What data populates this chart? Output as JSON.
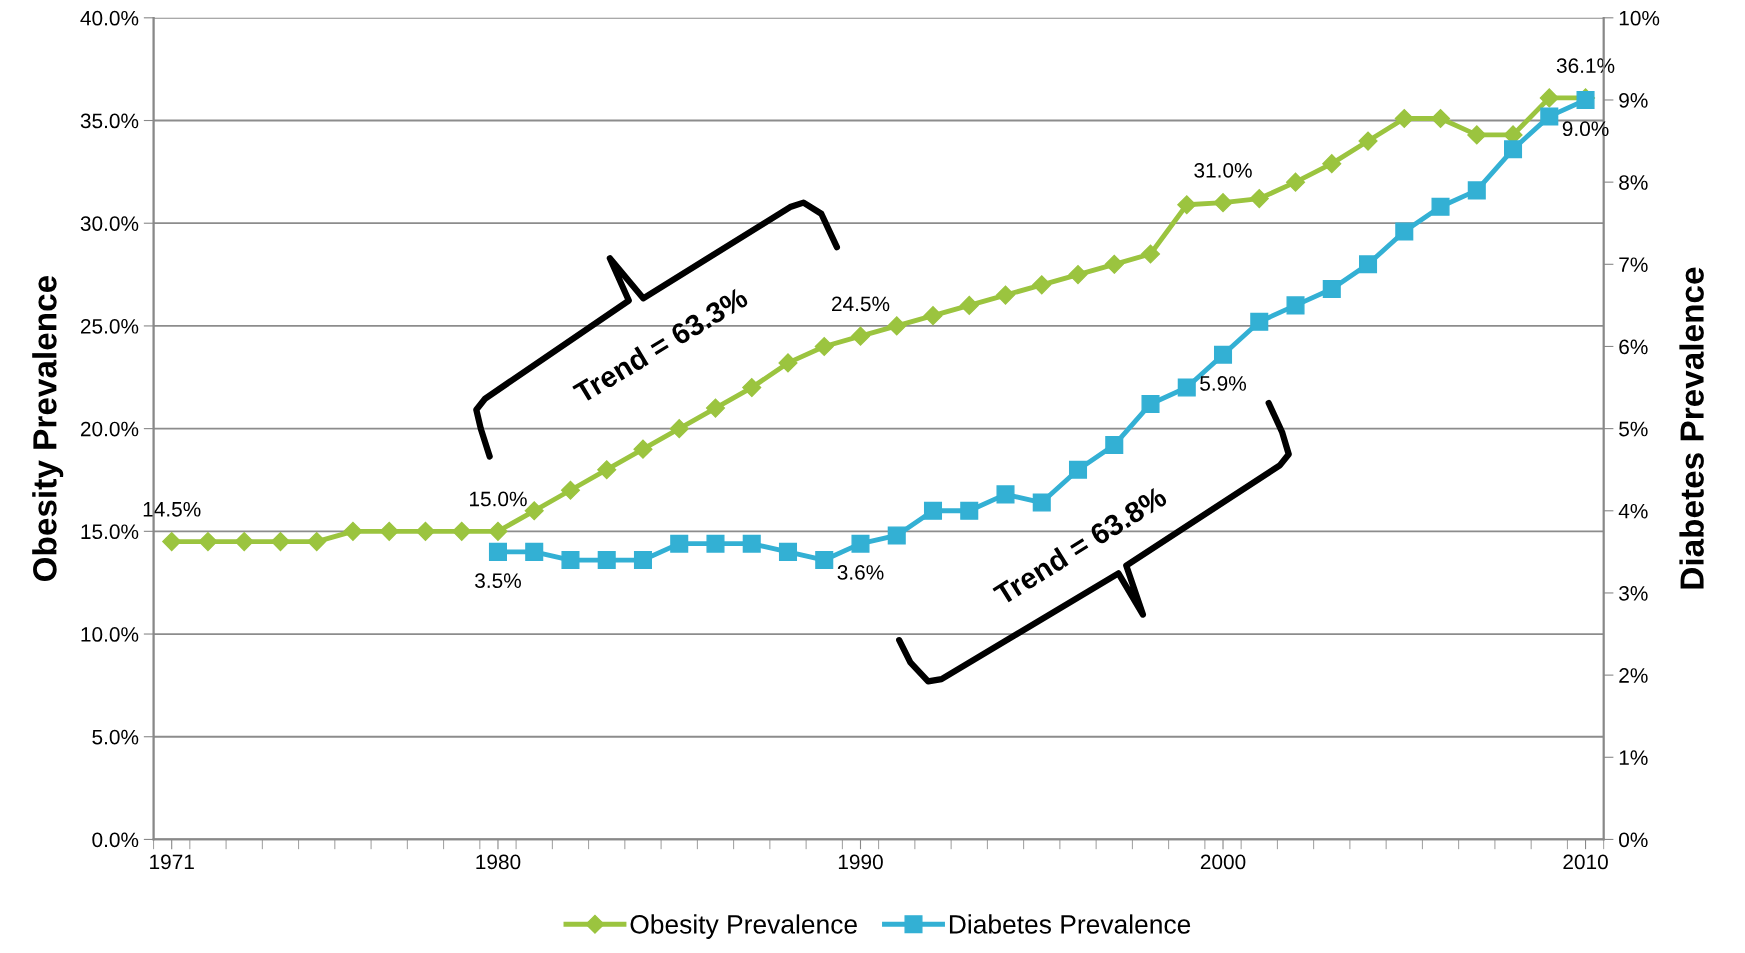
{
  "chart_data": {
    "type": "line",
    "x": [
      1971,
      1972,
      1973,
      1974,
      1975,
      1976,
      1977,
      1978,
      1979,
      1980,
      1981,
      1982,
      1983,
      1984,
      1985,
      1986,
      1987,
      1988,
      1989,
      1990,
      1991,
      1992,
      1993,
      1994,
      1995,
      1996,
      1997,
      1998,
      1999,
      2000,
      2001,
      2002,
      2003,
      2004,
      2005,
      2006,
      2007,
      2008,
      2009,
      2010
    ],
    "series": [
      {
        "name": "Obesity Prevalence",
        "color": "#9bc43f",
        "marker": "diamond",
        "values": [
          14.5,
          14.5,
          14.5,
          14.5,
          14.5,
          15.0,
          15.0,
          15.0,
          15.0,
          15.0,
          16.0,
          17.0,
          18.0,
          19.0,
          20.0,
          21.0,
          22.0,
          23.2,
          24.0,
          24.5,
          25.0,
          25.5,
          26.0,
          26.5,
          27.0,
          27.5,
          28.0,
          28.5,
          30.9,
          31.0,
          31.2,
          32.0,
          32.9,
          34.0,
          35.1,
          35.1,
          34.3,
          34.3,
          36.1,
          36.1
        ],
        "value_labels": [
          "14.5%",
          null,
          null,
          null,
          null,
          null,
          null,
          null,
          null,
          "15.0%",
          null,
          null,
          null,
          null,
          null,
          null,
          null,
          null,
          null,
          "24.5%",
          null,
          null,
          null,
          null,
          null,
          null,
          null,
          null,
          null,
          "31.0%",
          null,
          null,
          null,
          null,
          null,
          null,
          null,
          null,
          null,
          "36.1%"
        ]
      },
      {
        "name": "Diabetes Prevalence",
        "color": "#33b0d4",
        "marker": "square",
        "axis": "y2",
        "values": [
          null,
          null,
          null,
          null,
          null,
          null,
          null,
          null,
          null,
          3.5,
          3.5,
          3.4,
          3.4,
          3.4,
          3.6,
          3.6,
          3.6,
          3.5,
          3.4,
          3.6,
          3.7,
          4.0,
          4.0,
          4.2,
          4.1,
          4.5,
          4.8,
          5.3,
          5.5,
          5.9,
          6.3,
          6.5,
          6.7,
          7.0,
          7.4,
          7.7,
          7.9,
          8.4,
          8.8,
          9.0
        ],
        "value_labels": [
          null,
          null,
          null,
          null,
          null,
          null,
          null,
          null,
          null,
          "3.5%",
          null,
          null,
          null,
          null,
          null,
          null,
          null,
          null,
          null,
          "3.6%",
          null,
          null,
          null,
          null,
          null,
          null,
          null,
          null,
          null,
          "5.9%",
          null,
          null,
          null,
          null,
          null,
          null,
          null,
          null,
          null,
          "9.0%"
        ]
      }
    ],
    "ylabel": "Obesity Prevalence",
    "y2label": "Diabetes Prevalence",
    "xlim": [
      1970.5,
      2010.5
    ],
    "xticks": [
      1971,
      1980,
      1990,
      2000,
      2010
    ],
    "ylim": [
      0,
      40
    ],
    "yticks": [
      {
        "value": 0,
        "label": "0.0%"
      },
      {
        "value": 5,
        "label": "5.0%"
      },
      {
        "value": 10,
        "label": "10.0%"
      },
      {
        "value": 15,
        "label": "15.0%"
      },
      {
        "value": 20,
        "label": "20.0%"
      },
      {
        "value": 25,
        "label": "25.0%"
      },
      {
        "value": 30,
        "label": "30.0%"
      },
      {
        "value": 35,
        "label": "35.0%"
      },
      {
        "value": 40,
        "label": "40.0%"
      }
    ],
    "y2lim": [
      0,
      10
    ],
    "y2ticks": [
      {
        "value": 0,
        "label": "0%"
      },
      {
        "value": 1,
        "label": "1%"
      },
      {
        "value": 2,
        "label": "2%"
      },
      {
        "value": 3,
        "label": "3%"
      },
      {
        "value": 4,
        "label": "4%"
      },
      {
        "value": 5,
        "label": "5%"
      },
      {
        "value": 6,
        "label": "6%"
      },
      {
        "value": 7,
        "label": "7%"
      },
      {
        "value": 8,
        "label": "8%"
      },
      {
        "value": 9,
        "label": "9%"
      },
      {
        "value": 10,
        "label": "10%"
      }
    ],
    "annotations": [
      "Trend = 63.3%",
      "Trend = 63.8%"
    ],
    "grid": "y",
    "legend": "bottom",
    "line_style": "solid"
  }
}
